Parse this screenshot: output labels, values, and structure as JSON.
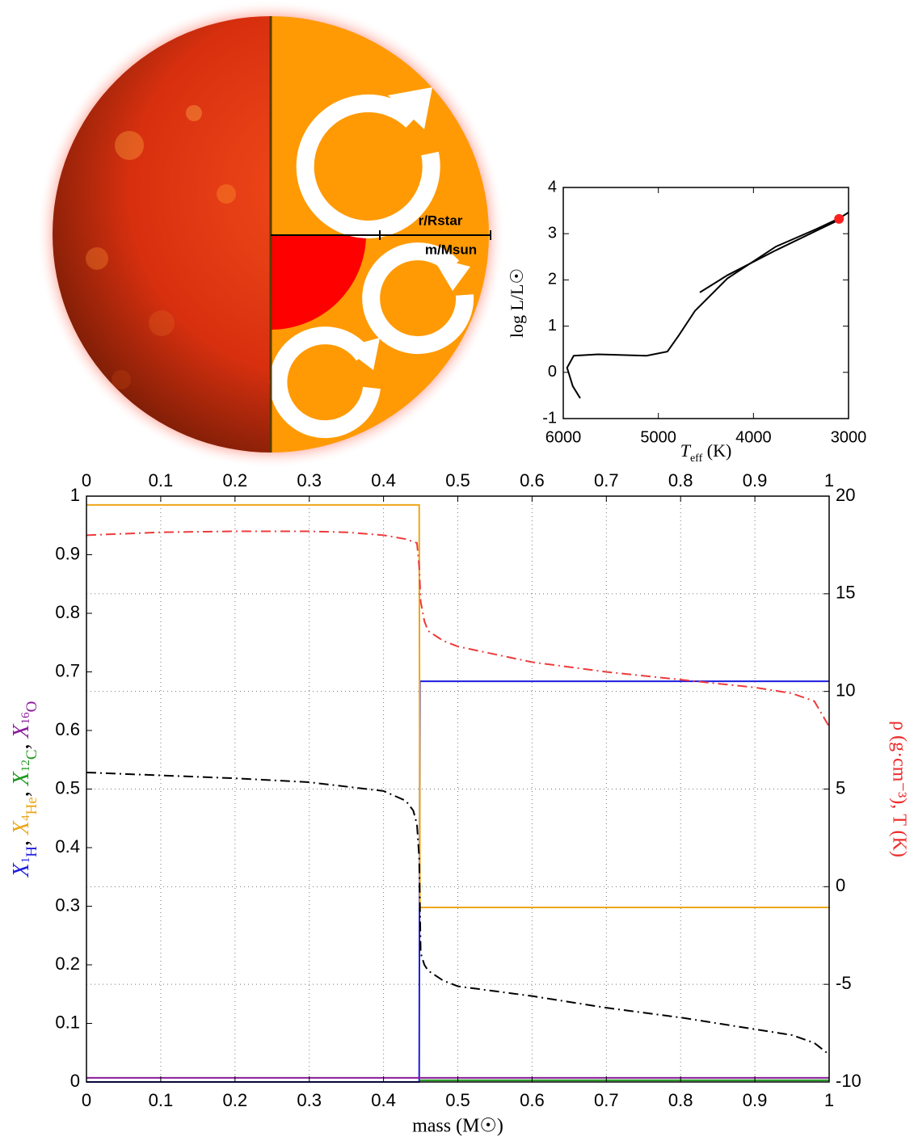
{
  "illustration": {
    "radius_label": "r/Rstar",
    "mass_label": "m/Msun"
  },
  "chart_data": [
    {
      "type": "line",
      "xlabel": {
        "symbol": "T",
        "sub": "eff",
        "unit": " (K)"
      },
      "ylabel": "log L/L☉",
      "xlim": [
        6000,
        3000
      ],
      "xticks": [
        6000,
        5000,
        4000,
        3000
      ],
      "ylim": [
        -1,
        4
      ],
      "yticks": [
        -1,
        0,
        1,
        2,
        3,
        4
      ],
      "grid": false,
      "series": [
        {
          "color": "#000000",
          "style": "solid",
          "x": [
            5822,
            5900,
            5960,
            5890,
            5635,
            5125,
            4905,
            4785,
            4615,
            4275,
            3765,
            3340,
            3100,
            3000
          ],
          "values": [
            -0.56,
            -0.3,
            0.1,
            0.36,
            0.39,
            0.36,
            0.45,
            0.8,
            1.33,
            2.03,
            2.72,
            3.1,
            3.33,
            3.46
          ]
        },
        {
          "color": "#000000",
          "style": "solid",
          "x": [
            4564,
            4275,
            3765,
            3100
          ],
          "values": [
            1.73,
            2.1,
            2.64,
            3.3
          ]
        }
      ],
      "marker": {
        "x": 3100,
        "y": 3.32,
        "color": "#ff2020"
      }
    },
    {
      "type": "line",
      "xlabel": "mass (M☉)",
      "ylabel_separator": ", ",
      "y2label": "ρ (g·cm⁻³), T (K)",
      "y2label_color": "#ee2b2b",
      "xlim": [
        0,
        1
      ],
      "xticks": [
        0,
        0.1,
        0.2,
        0.3,
        0.4,
        0.5,
        0.6,
        0.7,
        0.8,
        0.9,
        1
      ],
      "ylim": [
        0,
        1
      ],
      "yticks": [
        0,
        0.1,
        0.2,
        0.3,
        0.4,
        0.5,
        0.6,
        0.7,
        0.8,
        0.9,
        1
      ],
      "y2lim": [
        -10,
        20
      ],
      "y2ticks": [
        -10,
        -5,
        0,
        5,
        10,
        15,
        20
      ],
      "grid": true,
      "series": [
        {
          "label": {
            "symbol": "X",
            "mass": "1",
            "element": "H"
          },
          "color": "#1c1ce0",
          "style": "solid",
          "x": [
            0,
            0.448,
            0.449,
            1
          ],
          "values": [
            0,
            0,
            0.684,
            0.684
          ]
        },
        {
          "label": {
            "symbol": "X",
            "mass": "4",
            "element": "He"
          },
          "color": "#eea616",
          "style": "solid",
          "x": [
            0,
            0.448,
            0.449,
            1
          ],
          "values": [
            0.985,
            0.985,
            0.298,
            0.298
          ]
        },
        {
          "label": {
            "symbol": "X",
            "mass": "12",
            "element": "C"
          },
          "color": "#1a961a",
          "style": "solid",
          "x": [
            0.449,
            1
          ],
          "values": [
            0.003,
            0.003
          ]
        },
        {
          "label": {
            "symbol": "X",
            "mass": "16",
            "element": "O"
          },
          "color": "#8a1a9a",
          "style": "solid",
          "x": [
            0,
            1
          ],
          "values": [
            0.007,
            0.007
          ]
        },
        {
          "color": "#000000",
          "style": "dashdot",
          "axis": "y2",
          "x": [
            0,
            0.1,
            0.2,
            0.3,
            0.4,
            0.43,
            0.44,
            0.445,
            0.448,
            0.45,
            0.455,
            0.46,
            0.48,
            0.5,
            0.6,
            0.7,
            0.8,
            0.9,
            0.95,
            0.98,
            1
          ],
          "values": [
            5.85,
            5.7,
            5.55,
            5.35,
            4.9,
            4.4,
            3.9,
            3.2,
            1.5,
            -3.4,
            -4.0,
            -4.3,
            -4.8,
            -5.1,
            -5.6,
            -6.2,
            -6.7,
            -7.3,
            -7.6,
            -8.0,
            -8.6
          ]
        },
        {
          "color": "#ee3b3b",
          "style": "dashdot",
          "axis": "y2",
          "x": [
            0,
            0.1,
            0.2,
            0.3,
            0.35,
            0.4,
            0.43,
            0.445,
            0.448,
            0.45,
            0.455,
            0.46,
            0.48,
            0.5,
            0.6,
            0.7,
            0.8,
            0.9,
            0.95,
            0.98,
            1
          ],
          "values": [
            18.0,
            18.15,
            18.2,
            18.2,
            18.15,
            18.0,
            17.8,
            17.6,
            16.4,
            14.6,
            13.6,
            13.1,
            12.6,
            12.3,
            11.5,
            11.0,
            10.6,
            10.2,
            9.9,
            9.5,
            8.2
          ]
        }
      ]
    }
  ]
}
